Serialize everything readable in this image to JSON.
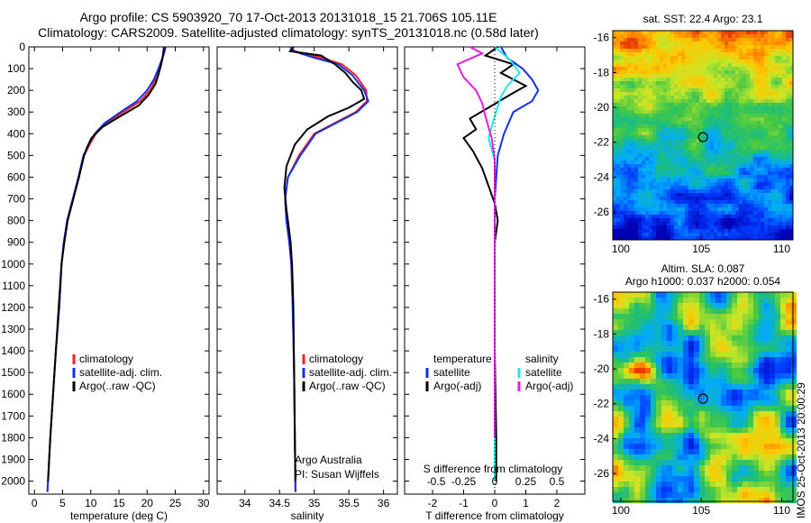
{
  "header": {
    "title_line1": "Argo profile: CS 5903920_70 17-Oct-2013 20131018_15 21.706S 105.11E",
    "title_line2": "Climatology: CARS2009. Satellite-adjusted climatology: synTS_20131018.nc (0.58d later)"
  },
  "side_stamp": "IMOS 25-Oct-2013 20:00:29",
  "colors": {
    "climatology": "#ff2020",
    "satellite": "#1030f0",
    "argo": "#000000",
    "salinity_satellite": "#20e8e8",
    "salinity_argo": "#e020e0"
  },
  "chart_data": [
    {
      "type": "line",
      "name_ref": "temperature-panel",
      "xlabel": "temperature (deg C)",
      "ylabel": "",
      "xlim": [
        -1,
        31
      ],
      "ylim": [
        2060,
        0
      ],
      "xticks": [
        "0",
        "5",
        "10",
        "15",
        "20",
        "25",
        "30"
      ],
      "yticks": [
        "0",
        "100",
        "200",
        "300",
        "400",
        "500",
        "600",
        "700",
        "800",
        "900",
        "1000",
        "1100",
        "1200",
        "1300",
        "1400",
        "1500",
        "1600",
        "1700",
        "1800",
        "1900",
        "2000"
      ],
      "legend": [
        "climatology",
        "satellite-adj. clim.",
        "Argo(..raw -QC)"
      ],
      "legend_position": "lower-center",
      "series": [
        {
          "name": "climatology",
          "color": "#ff2020",
          "points": [
            [
              23.1,
              0
            ],
            [
              22.9,
              30
            ],
            [
              22.7,
              60
            ],
            [
              22.2,
              100
            ],
            [
              21.5,
              150
            ],
            [
              20.5,
              200
            ],
            [
              18.8,
              250
            ],
            [
              15.8,
              300
            ],
            [
              12.8,
              350
            ],
            [
              10.9,
              400
            ],
            [
              9.8,
              450
            ],
            [
              8.8,
              500
            ],
            [
              7.9,
              600
            ],
            [
              6.8,
              700
            ],
            [
              5.8,
              800
            ],
            [
              5.2,
              900
            ],
            [
              4.8,
              1000
            ],
            [
              4.4,
              1200
            ],
            [
              3.8,
              1400
            ],
            [
              3.3,
              1600
            ],
            [
              2.8,
              1800
            ],
            [
              2.4,
              2000
            ],
            [
              2.3,
              2050
            ]
          ]
        },
        {
          "name": "satellite-adj. clim.",
          "color": "#1030f0",
          "points": [
            [
              23.3,
              0
            ],
            [
              23.0,
              30
            ],
            [
              22.6,
              60
            ],
            [
              22.0,
              100
            ],
            [
              21.2,
              150
            ],
            [
              20.0,
              200
            ],
            [
              18.2,
              250
            ],
            [
              15.3,
              300
            ],
            [
              12.5,
              350
            ],
            [
              10.7,
              400
            ],
            [
              9.6,
              450
            ],
            [
              8.7,
              500
            ],
            [
              7.8,
              600
            ],
            [
              6.8,
              700
            ],
            [
              5.8,
              800
            ],
            [
              5.2,
              900
            ],
            [
              4.8,
              1000
            ],
            [
              4.4,
              1200
            ],
            [
              3.8,
              1400
            ],
            [
              3.3,
              1600
            ],
            [
              2.8,
              1800
            ],
            [
              2.4,
              2000
            ],
            [
              2.3,
              2050
            ]
          ]
        },
        {
          "name": "Argo(..raw -QC)",
          "color": "#000000",
          "points": [
            [
              23.0,
              0
            ],
            [
              22.8,
              40
            ],
            [
              22.5,
              80
            ],
            [
              22.1,
              120
            ],
            [
              21.5,
              170
            ],
            [
              20.3,
              220
            ],
            [
              18.5,
              270
            ],
            [
              15.2,
              320
            ],
            [
              12.0,
              370
            ],
            [
              10.1,
              420
            ],
            [
              9.4,
              460
            ],
            [
              8.8,
              500
            ],
            [
              7.9,
              600
            ],
            [
              6.9,
              700
            ],
            [
              5.9,
              800
            ],
            [
              5.3,
              900
            ],
            [
              4.8,
              1000
            ],
            [
              4.3,
              1200
            ],
            [
              3.8,
              1400
            ],
            [
              3.3,
              1600
            ],
            [
              2.8,
              1800
            ],
            [
              2.4,
              2000
            ]
          ]
        }
      ]
    },
    {
      "type": "line",
      "name_ref": "salinity-panel",
      "xlabel": "salinity",
      "xlim": [
        33.6,
        36.2
      ],
      "ylim": [
        2060,
        0
      ],
      "xticks": [
        "34",
        "34.5",
        "35",
        "35.5",
        "36"
      ],
      "legend": [
        "climatology",
        "satellite-adj. clim.",
        "Argo(..raw -QC)"
      ],
      "legend_position": "lower-right",
      "annotation": [
        "Argo Australia",
        "PI: Susan Wijffels"
      ],
      "series": [
        {
          "name": "climatology",
          "color": "#ff2020",
          "points": [
            [
              34.66,
              0
            ],
            [
              34.72,
              20
            ],
            [
              35.1,
              50
            ],
            [
              35.4,
              80
            ],
            [
              35.6,
              130
            ],
            [
              35.75,
              200
            ],
            [
              35.76,
              250
            ],
            [
              35.6,
              300
            ],
            [
              35.3,
              350
            ],
            [
              35.0,
              400
            ],
            [
              34.78,
              500
            ],
            [
              34.62,
              600
            ],
            [
              34.58,
              700
            ],
            [
              34.6,
              800
            ],
            [
              34.64,
              900
            ],
            [
              34.67,
              1000
            ],
            [
              34.69,
              1200
            ],
            [
              34.71,
              1500
            ],
            [
              34.72,
              1800
            ],
            [
              34.73,
              2050
            ]
          ]
        },
        {
          "name": "satellite-adj. clim.",
          "color": "#1030f0",
          "points": [
            [
              34.66,
              0
            ],
            [
              34.7,
              20
            ],
            [
              35.0,
              50
            ],
            [
              35.35,
              80
            ],
            [
              35.55,
              130
            ],
            [
              35.72,
              200
            ],
            [
              35.78,
              250
            ],
            [
              35.62,
              300
            ],
            [
              35.32,
              350
            ],
            [
              35.02,
              400
            ],
            [
              34.8,
              500
            ],
            [
              34.62,
              600
            ],
            [
              34.58,
              700
            ],
            [
              34.6,
              800
            ],
            [
              34.64,
              900
            ],
            [
              34.67,
              1000
            ],
            [
              34.69,
              1200
            ],
            [
              34.71,
              1500
            ],
            [
              34.72,
              1800
            ],
            [
              34.73,
              2050
            ]
          ]
        },
        {
          "name": "Argo(..raw -QC)",
          "color": "#000000",
          "points": [
            [
              34.7,
              0
            ],
            [
              34.65,
              20
            ],
            [
              35.1,
              40
            ],
            [
              35.3,
              80
            ],
            [
              35.45,
              120
            ],
            [
              35.55,
              160
            ],
            [
              35.68,
              200
            ],
            [
              35.72,
              240
            ],
            [
              35.5,
              280
            ],
            [
              35.2,
              320
            ],
            [
              34.9,
              380
            ],
            [
              34.72,
              450
            ],
            [
              34.6,
              550
            ],
            [
              34.57,
              650
            ],
            [
              34.6,
              750
            ],
            [
              34.62,
              800
            ],
            [
              34.66,
              900
            ],
            [
              34.68,
              1000
            ],
            [
              34.7,
              1200
            ],
            [
              34.71,
              1500
            ],
            [
              34.72,
              1800
            ],
            [
              34.73,
              2000
            ]
          ]
        }
      ]
    },
    {
      "type": "line",
      "name_ref": "difference-panel",
      "xlabel": "T difference from climatology",
      "xlabel_top": "S difference from climatology",
      "xlim": [
        -2.9,
        2.9
      ],
      "ylim": [
        2060,
        0
      ],
      "xticks": [
        "-2",
        "-1",
        "0",
        "1",
        "2"
      ],
      "xticks_salinity": [
        "-0.5",
        "-0.25",
        "0",
        "0.25",
        "0.5"
      ],
      "legend_temperature": [
        "temperature",
        "satellite",
        "Argo(-adj)"
      ],
      "legend_salinity": [
        "salinity",
        "satellite",
        "Argo(-adj)"
      ],
      "series": [
        {
          "name": "temperature satellite",
          "color": "#1030f0",
          "points": [
            [
              0.2,
              0
            ],
            [
              0.4,
              50
            ],
            [
              0.9,
              100
            ],
            [
              1.2,
              150
            ],
            [
              1.4,
              200
            ],
            [
              1.2,
              250
            ],
            [
              0.6,
              300
            ],
            [
              0.3,
              400
            ],
            [
              0.1,
              500
            ],
            [
              0.0,
              700
            ],
            [
              0.0,
              1000
            ],
            [
              0.0,
              1500
            ],
            [
              0.0,
              2000
            ]
          ]
        },
        {
          "name": "temperature Argo(-adj)",
          "color": "#000000",
          "points": [
            [
              0.1,
              0
            ],
            [
              -0.3,
              40
            ],
            [
              0.6,
              80
            ],
            [
              0.2,
              120
            ],
            [
              1.0,
              180
            ],
            [
              0.5,
              220
            ],
            [
              -0.2,
              280
            ],
            [
              -0.8,
              330
            ],
            [
              -0.6,
              380
            ],
            [
              -1.0,
              420
            ],
            [
              -0.7,
              480
            ],
            [
              -0.4,
              560
            ],
            [
              -0.2,
              640
            ],
            [
              0.0,
              720
            ],
            [
              0.1,
              800
            ],
            [
              0.0,
              900
            ],
            [
              0.0,
              1100
            ],
            [
              0.0,
              1400
            ],
            [
              0.05,
              1800
            ],
            [
              0.05,
              2000
            ]
          ]
        },
        {
          "name": "salinity satellite",
          "color": "#20e8e8",
          "points": [
            [
              0.0,
              0
            ],
            [
              0.5,
              60
            ],
            [
              0.8,
              120
            ],
            [
              0.4,
              180
            ],
            [
              0.2,
              230
            ],
            [
              0.0,
              320
            ],
            [
              -0.2,
              420
            ],
            [
              0.0,
              520
            ],
            [
              0.0,
              700
            ],
            [
              0.0,
              1000
            ],
            [
              0.0,
              1500
            ],
            [
              0.0,
              2000
            ]
          ]
        },
        {
          "name": "salinity Argo(-adj)",
          "color": "#e020e0",
          "points": [
            [
              -0.8,
              0
            ],
            [
              -0.4,
              30
            ],
            [
              -1.2,
              80
            ],
            [
              -1.0,
              140
            ],
            [
              -0.6,
              200
            ],
            [
              -0.4,
              260
            ],
            [
              -0.3,
              320
            ],
            [
              -0.1,
              420
            ],
            [
              0.0,
              520
            ],
            [
              0.0,
              700
            ],
            [
              0.0,
              900
            ],
            [
              0.0,
              1200
            ],
            [
              0.0,
              1500
            ],
            [
              0.0,
              1800
            ]
          ]
        }
      ]
    },
    {
      "type": "heatmap",
      "name_ref": "sst-map",
      "title": "sat. SST: 22.4 Argo: 23.1",
      "xlim": [
        99.5,
        110.7
      ],
      "ylim": [
        -27.6,
        -15.6
      ],
      "xticks": [
        "100",
        "105",
        "110"
      ],
      "yticks": [
        "-16",
        "-18",
        "-20",
        "-22",
        "-24",
        "-26"
      ],
      "marker": {
        "lon": 105.11,
        "lat": -21.706
      }
    },
    {
      "type": "heatmap",
      "name_ref": "sla-map",
      "title": "Altim. SLA: 0.087",
      "subtitle": "Argo h1000: 0.037 h2000: 0.054",
      "xlim": [
        99.5,
        110.7
      ],
      "ylim": [
        -27.6,
        -15.6
      ],
      "xticks": [
        "100",
        "105",
        "110"
      ],
      "yticks": [
        "-16",
        "-18",
        "-20",
        "-22",
        "-24",
        "-26"
      ],
      "marker": {
        "lon": 105.11,
        "lat": -21.706
      }
    }
  ]
}
